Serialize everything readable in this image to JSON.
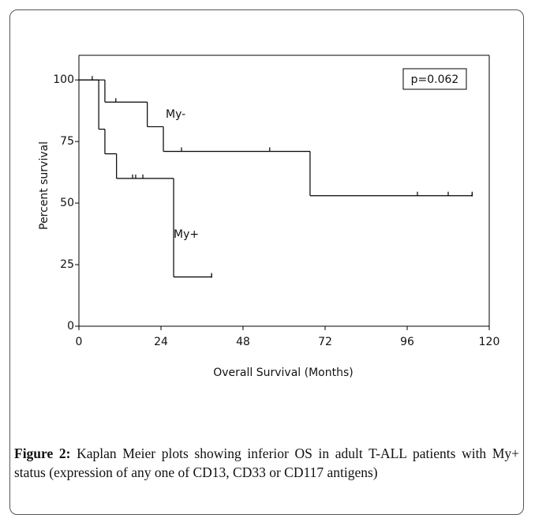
{
  "chart_data": {
    "type": "step",
    "xlabel": "Overall Survival (Months)",
    "ylabel": "Percent survival",
    "annotation": "p=0.062",
    "xlim": [
      0,
      120
    ],
    "xticks": [
      0,
      24,
      48,
      72,
      96,
      120
    ],
    "ylim": [
      0,
      110
    ],
    "yticks": [
      0,
      25,
      50,
      75,
      100
    ],
    "color": "#000000",
    "series": [
      {
        "name": "My-",
        "x": [
          0,
          7.6,
          20,
          24.7,
          67.6
        ],
        "values": [
          100,
          91,
          81,
          71,
          53
        ],
        "end_x": 115,
        "censor_x": [
          3.9,
          10.8,
          30,
          55.8,
          99,
          108,
          115
        ],
        "censor_values": [
          100,
          91,
          71,
          71,
          53,
          53,
          53
        ]
      },
      {
        "name": "My+",
        "x": [
          0,
          5.8,
          7.6,
          11,
          27.7
        ],
        "values": [
          100,
          80,
          70,
          60,
          20
        ],
        "end_x": 38.8,
        "censor_x": [
          15.7,
          16.6,
          18.7,
          38.8
        ],
        "censor_values": [
          60,
          60,
          60,
          20
        ]
      }
    ]
  },
  "caption": {
    "label": "Figure 2:",
    "text": "Kaplan Meier plots showing inferior OS in adult T-ALL patients with My+ status (expression of any one of CD13, CD33 or CD117 antigens)"
  }
}
